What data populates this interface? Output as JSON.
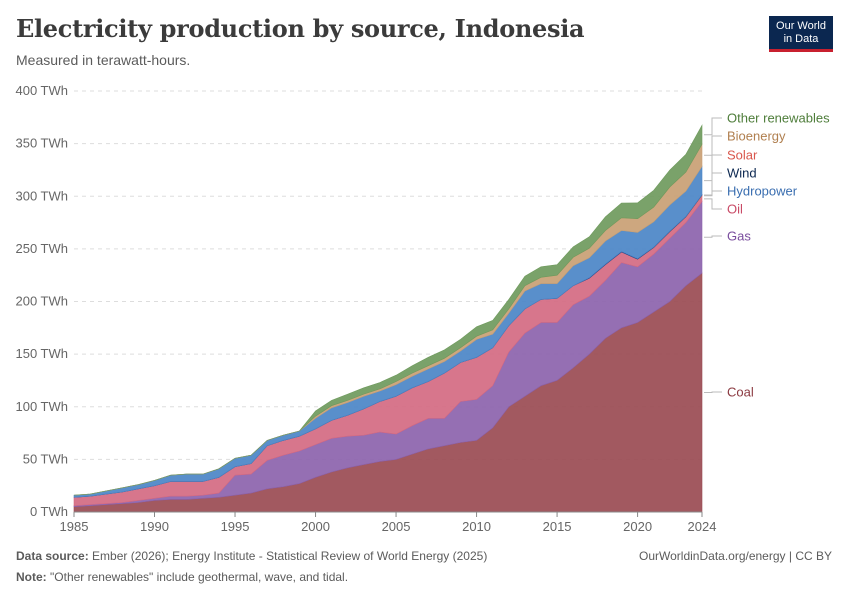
{
  "header": {
    "title": "Electricity production by source, Indonesia",
    "subtitle": "Measured in terawatt-hours.",
    "logo_line1": "Our World",
    "logo_line2": "in Data"
  },
  "footer": {
    "source_label": "Data source:",
    "source_text": "Ember (2026); Energy Institute - Statistical Review of World Energy (2025)",
    "note_label": "Note:",
    "note_text": "\"Other renewables\" include geothermal, wave, and tidal.",
    "credit": "OurWorldinData.org/energy | CC BY"
  },
  "chart_data": {
    "type": "area",
    "stacked": true,
    "title": "Electricity production by source, Indonesia",
    "subtitle": "Measured in terawatt-hours.",
    "xlabel": "",
    "ylabel": "",
    "unit": "TWh",
    "ylim": [
      0,
      400
    ],
    "yticks": [
      0,
      50,
      100,
      150,
      200,
      250,
      300,
      350,
      400
    ],
    "ytick_labels": [
      "0 TWh",
      "50 TWh",
      "100 TWh",
      "150 TWh",
      "200 TWh",
      "250 TWh",
      "300 TWh",
      "350 TWh",
      "400 TWh"
    ],
    "xlim": [
      1985,
      2024
    ],
    "xticks": [
      1985,
      1990,
      1995,
      2000,
      2005,
      2010,
      2015,
      2020,
      2024
    ],
    "grid": true,
    "legend_position": "right",
    "x": [
      1985,
      1986,
      1987,
      1988,
      1989,
      1990,
      1991,
      1992,
      1993,
      1994,
      1995,
      1996,
      1997,
      1998,
      1999,
      2000,
      2001,
      2002,
      2003,
      2004,
      2005,
      2006,
      2007,
      2008,
      2009,
      2010,
      2011,
      2012,
      2013,
      2014,
      2015,
      2016,
      2017,
      2018,
      2019,
      2020,
      2021,
      2022,
      2023,
      2024
    ],
    "series": [
      {
        "name": "Coal",
        "color": "#9a4b52",
        "values": [
          5,
          6,
          7,
          8,
          9,
          11,
          12,
          12,
          13,
          14,
          16,
          18,
          22,
          24,
          27,
          33,
          38,
          42,
          45,
          48,
          50,
          55,
          60,
          63,
          66,
          68,
          80,
          100,
          110,
          120,
          125,
          137,
          150,
          165,
          175,
          180,
          190,
          200,
          215,
          227
        ]
      },
      {
        "name": "Gas",
        "color": "#8c63ac",
        "values": [
          1,
          1,
          1,
          1,
          2,
          2,
          3,
          3,
          3,
          4,
          19,
          18,
          27,
          30,
          31,
          31,
          32,
          30,
          28,
          28,
          24,
          27,
          29,
          26,
          39,
          39,
          40,
          52,
          60,
          60,
          55,
          60,
          55,
          55,
          62,
          53,
          55,
          60,
          60,
          68
        ]
      },
      {
        "name": "Oil",
        "color": "#d46a82",
        "values": [
          8,
          8,
          9,
          10,
          11,
          12,
          14,
          14,
          13,
          15,
          8,
          10,
          14,
          14,
          14,
          15,
          17,
          20,
          25,
          29,
          36,
          36,
          35,
          43,
          37,
          40,
          36,
          25,
          23,
          22,
          23,
          18,
          17,
          15,
          10,
          7,
          6,
          6,
          5,
          5
        ]
      },
      {
        "name": "Solar",
        "color": "#e57b72",
        "values": [
          0,
          0,
          0,
          0,
          0,
          0,
          0,
          0,
          0,
          0,
          0,
          0,
          0,
          0,
          0,
          0,
          0,
          0,
          0,
          0,
          0,
          0,
          0,
          0,
          0,
          0,
          0,
          0,
          0,
          0,
          0,
          0,
          0,
          0,
          0,
          0.2,
          0.3,
          0.4,
          0.5,
          1
        ]
      },
      {
        "name": "Wind",
        "color": "#1a3a7e",
        "values": [
          0,
          0,
          0,
          0,
          0,
          0,
          0,
          0,
          0,
          0,
          0,
          0,
          0,
          0,
          0,
          0,
          0,
          0,
          0,
          0,
          0,
          0,
          0,
          0,
          0,
          0,
          0,
          0,
          0,
          0,
          0,
          0,
          0.5,
          0.5,
          0.5,
          0.5,
          0.4,
          0.4,
          0.4,
          0.4
        ]
      },
      {
        "name": "Hydropower",
        "color": "#4b86c7",
        "values": [
          2,
          2,
          3,
          4,
          4,
          5,
          6,
          7,
          7,
          8,
          8,
          8,
          5,
          5,
          5,
          10,
          12,
          12,
          12,
          10,
          11,
          11,
          12,
          11,
          11,
          17,
          13,
          12,
          17,
          15,
          14,
          19,
          19,
          22,
          20,
          25,
          24,
          25,
          24,
          27
        ]
      },
      {
        "name": "Bioenergy",
        "color": "#c9a074",
        "values": [
          0,
          0,
          0,
          0,
          0,
          0,
          0,
          0,
          0,
          0,
          0,
          0,
          0,
          0,
          0,
          2,
          2,
          2,
          2,
          2,
          3,
          3,
          3,
          3,
          3,
          3,
          4,
          4,
          5,
          6,
          8,
          8,
          9,
          10,
          12,
          13,
          14,
          17,
          18,
          21
        ]
      },
      {
        "name": "Other renewables",
        "color": "#6f9a5d",
        "values": [
          0,
          0,
          0,
          0,
          0,
          0,
          0,
          0,
          0,
          0,
          0,
          0,
          0,
          0,
          0,
          5,
          5,
          6,
          6,
          6,
          6,
          7,
          8,
          8,
          8,
          9,
          9,
          9,
          9,
          10,
          10,
          10,
          11,
          13,
          14,
          15,
          16,
          16,
          17,
          18
        ]
      }
    ],
    "legend_order": [
      "Other renewables",
      "Bioenergy",
      "Solar",
      "Wind",
      "Hydropower",
      "Oil",
      "Gas",
      "Coal"
    ]
  }
}
